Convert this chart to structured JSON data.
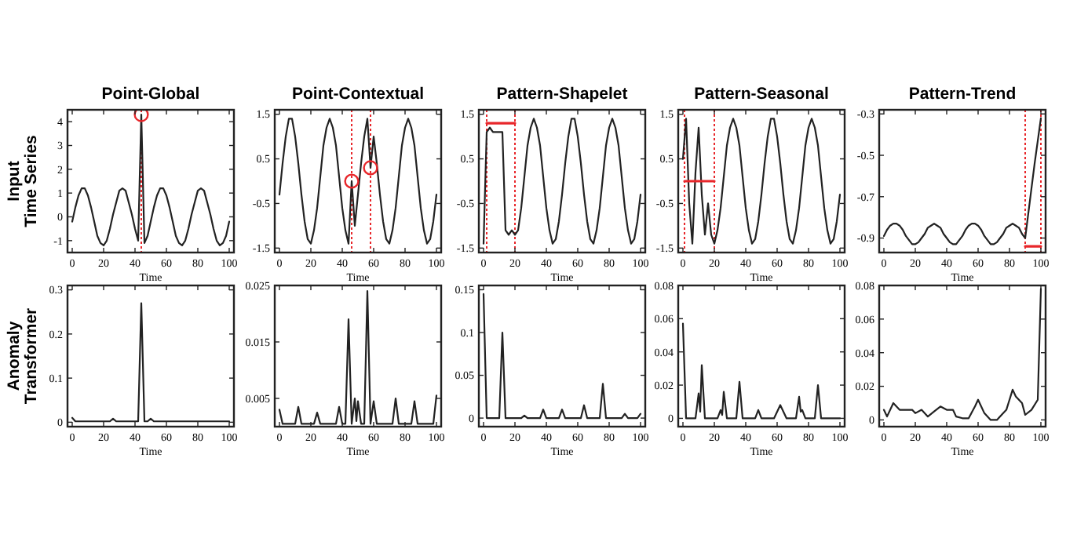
{
  "chart_data": [
    {
      "type": "line",
      "title": "Point-Global",
      "xlabel": "Time",
      "ylabel": "Input Time Series",
      "xlim": [
        -3,
        103
      ],
      "xticks": [
        0,
        20,
        40,
        60,
        80,
        100
      ],
      "ylim": [
        -1.5,
        4.5
      ],
      "yticks": [
        -1,
        0,
        1,
        2,
        3,
        4
      ],
      "x": [
        0,
        2,
        4,
        6,
        8,
        10,
        12,
        14,
        16,
        18,
        20,
        22,
        24,
        26,
        28,
        30,
        32,
        34,
        36,
        38,
        40,
        42,
        44,
        46,
        48,
        50,
        52,
        54,
        56,
        58,
        60,
        62,
        64,
        66,
        68,
        70,
        72,
        74,
        76,
        78,
        80,
        82,
        84,
        86,
        88,
        90,
        92,
        94,
        96,
        98,
        100
      ],
      "series": [
        {
          "type": "line",
          "color": "#222222",
          "values": [
            -0.2,
            0.4,
            0.9,
            1.2,
            1.2,
            0.9,
            0.4,
            -0.2,
            -0.8,
            -1.1,
            -1.2,
            -1.0,
            -0.5,
            0.1,
            0.6,
            1.1,
            1.2,
            1.1,
            0.6,
            0.1,
            -0.5,
            -1.0,
            4.3,
            -1.1,
            -0.8,
            -0.2,
            0.4,
            0.9,
            1.2,
            1.2,
            0.9,
            0.4,
            -0.2,
            -0.8,
            -1.1,
            -1.2,
            -1.0,
            -0.5,
            0.1,
            0.6,
            1.1,
            1.2,
            1.1,
            0.6,
            0.1,
            -0.5,
            -1.0,
            -1.2,
            -1.1,
            -0.8,
            -0.2
          ]
        },
        {
          "type": "scatter",
          "marker": "circle",
          "color": "#e8262a",
          "x": [
            44
          ],
          "values": [
            4.3
          ]
        }
      ],
      "ref_lines": [
        {
          "axis": "x",
          "value": 44,
          "color": "#e8262a",
          "line_style": "dotted"
        }
      ]
    },
    {
      "type": "line",
      "title": "Point-Contextual",
      "xlabel": "Time",
      "xlim": [
        -3,
        103
      ],
      "xticks": [
        0,
        20,
        40,
        60,
        80,
        100
      ],
      "ylim": [
        -1.6,
        1.6
      ],
      "yticks": [
        -1.5,
        -0.5,
        0.5,
        1.5
      ],
      "x": [
        0,
        2,
        4,
        6,
        8,
        10,
        12,
        14,
        16,
        18,
        20,
        22,
        24,
        26,
        28,
        30,
        32,
        34,
        36,
        38,
        40,
        42,
        44,
        46,
        48,
        50,
        52,
        54,
        56,
        58,
        60,
        62,
        64,
        66,
        68,
        70,
        72,
        74,
        76,
        78,
        80,
        82,
        84,
        86,
        88,
        90,
        92,
        94,
        96,
        98,
        100
      ],
      "series": [
        {
          "type": "line",
          "color": "#222222",
          "values": [
            -0.3,
            0.4,
            1.0,
            1.4,
            1.4,
            1.0,
            0.4,
            -0.3,
            -0.9,
            -1.3,
            -1.4,
            -1.1,
            -0.6,
            0.1,
            0.8,
            1.2,
            1.4,
            1.2,
            0.8,
            0.1,
            -0.6,
            -1.1,
            -1.4,
            0.0,
            -1.0,
            -0.3,
            0.4,
            1.0,
            1.4,
            0.3,
            1.0,
            0.4,
            -0.3,
            -0.9,
            -1.3,
            -1.4,
            -1.1,
            -0.6,
            0.1,
            0.8,
            1.2,
            1.4,
            1.2,
            0.8,
            0.1,
            -0.6,
            -1.1,
            -1.4,
            -1.3,
            -0.9,
            -0.3
          ]
        },
        {
          "type": "scatter",
          "marker": "circle",
          "color": "#e8262a",
          "x": [
            46,
            58
          ],
          "values": [
            0.0,
            0.3
          ]
        }
      ],
      "ref_lines": [
        {
          "axis": "x",
          "value": 46,
          "color": "#e8262a",
          "line_style": "dotted"
        },
        {
          "axis": "x",
          "value": 58,
          "color": "#e8262a",
          "line_style": "dotted"
        }
      ]
    },
    {
      "type": "line",
      "title": "Pattern-Shapelet",
      "xlabel": "Time",
      "xlim": [
        -3,
        103
      ],
      "xticks": [
        0,
        20,
        40,
        60,
        80,
        100
      ],
      "ylim": [
        -1.6,
        1.6
      ],
      "yticks": [
        -1.5,
        -0.5,
        0.5,
        1.5
      ],
      "x": [
        0,
        2,
        4,
        6,
        8,
        10,
        12,
        14,
        16,
        18,
        20,
        22,
        24,
        26,
        28,
        30,
        32,
        34,
        36,
        38,
        40,
        42,
        44,
        46,
        48,
        50,
        52,
        54,
        56,
        58,
        60,
        62,
        64,
        66,
        68,
        70,
        72,
        74,
        76,
        78,
        80,
        82,
        84,
        86,
        88,
        90,
        92,
        94,
        96,
        98,
        100
      ],
      "series": [
        {
          "type": "line",
          "color": "#222222",
          "values": [
            -1.4,
            1.1,
            1.2,
            1.1,
            1.1,
            1.1,
            1.1,
            -1.1,
            -1.2,
            -1.1,
            -1.2,
            -1.1,
            -0.6,
            0.1,
            0.8,
            1.2,
            1.4,
            1.2,
            0.8,
            0.1,
            -0.6,
            -1.1,
            -1.4,
            -1.3,
            -0.9,
            -0.3,
            0.4,
            1.0,
            1.4,
            1.4,
            1.0,
            0.4,
            -0.3,
            -0.9,
            -1.3,
            -1.4,
            -1.1,
            -0.6,
            0.1,
            0.8,
            1.2,
            1.4,
            1.2,
            0.8,
            0.1,
            -0.6,
            -1.1,
            -1.4,
            -1.3,
            -0.9,
            -0.3
          ]
        },
        {
          "type": "line",
          "color": "#e8262a",
          "x": [
            2,
            20
          ],
          "values": [
            1.3,
            1.3
          ]
        }
      ],
      "ref_lines": [
        {
          "axis": "x",
          "value": 2,
          "color": "#e8262a",
          "line_style": "dotted"
        },
        {
          "axis": "x",
          "value": 20,
          "color": "#e8262a",
          "line_style": "dotted"
        }
      ]
    },
    {
      "type": "line",
      "title": "Pattern-Seasonal",
      "xlabel": "Time",
      "xlim": [
        -3,
        103
      ],
      "xticks": [
        0,
        20,
        40,
        60,
        80,
        100
      ],
      "ylim": [
        -1.6,
        1.6
      ],
      "yticks": [
        -1.5,
        -0.5,
        0.5,
        1.5
      ],
      "x": [
        0,
        2,
        4,
        6,
        8,
        10,
        12,
        14,
        16,
        18,
        20,
        22,
        24,
        26,
        28,
        30,
        32,
        34,
        36,
        38,
        40,
        42,
        44,
        46,
        48,
        50,
        52,
        54,
        56,
        58,
        60,
        62,
        64,
        66,
        68,
        70,
        72,
        74,
        76,
        78,
        80,
        82,
        84,
        86,
        88,
        90,
        92,
        94,
        96,
        98,
        100
      ],
      "series": [
        {
          "type": "line",
          "color": "#222222",
          "values": [
            0.5,
            1.4,
            -0.5,
            -1.4,
            0.2,
            1.2,
            -0.3,
            -1.2,
            -0.5,
            -1.2,
            -1.4,
            -1.1,
            -0.6,
            0.1,
            0.8,
            1.2,
            1.4,
            1.2,
            0.8,
            0.1,
            -0.6,
            -1.1,
            -1.4,
            -1.3,
            -0.9,
            -0.3,
            0.4,
            1.0,
            1.4,
            1.4,
            1.0,
            0.4,
            -0.3,
            -0.9,
            -1.3,
            -1.4,
            -1.1,
            -0.6,
            0.1,
            0.8,
            1.2,
            1.4,
            1.2,
            0.8,
            0.1,
            -0.6,
            -1.1,
            -1.4,
            -1.3,
            -0.9,
            -0.3
          ]
        },
        {
          "type": "line",
          "color": "#e8262a",
          "x": [
            1,
            20
          ],
          "values": [
            0,
            0
          ]
        }
      ],
      "ref_lines": [
        {
          "axis": "x",
          "value": 1,
          "color": "#e8262a",
          "line_style": "dotted"
        },
        {
          "axis": "x",
          "value": 20,
          "color": "#e8262a",
          "line_style": "dotted"
        }
      ]
    },
    {
      "type": "line",
      "title": "Pattern-Trend",
      "xlabel": "Time",
      "xlim": [
        -3,
        103
      ],
      "xticks": [
        0,
        20,
        40,
        60,
        80,
        100
      ],
      "ylim": [
        -0.97,
        -0.28
      ],
      "yticks": [
        -0.9,
        -0.7,
        -0.5,
        -0.3
      ],
      "x": [
        0,
        2,
        4,
        6,
        8,
        10,
        12,
        14,
        16,
        18,
        20,
        22,
        24,
        26,
        28,
        30,
        32,
        34,
        36,
        38,
        40,
        42,
        44,
        46,
        48,
        50,
        52,
        54,
        56,
        58,
        60,
        62,
        64,
        66,
        68,
        70,
        72,
        74,
        76,
        78,
        80,
        82,
        84,
        86,
        88,
        90,
        92,
        94,
        96,
        98,
        100
      ],
      "series": [
        {
          "type": "line",
          "color": "#222222",
          "values": [
            -0.89,
            -0.86,
            -0.84,
            -0.83,
            -0.83,
            -0.84,
            -0.86,
            -0.89,
            -0.91,
            -0.93,
            -0.93,
            -0.92,
            -0.9,
            -0.88,
            -0.85,
            -0.84,
            -0.83,
            -0.84,
            -0.85,
            -0.88,
            -0.9,
            -0.92,
            -0.93,
            -0.93,
            -0.91,
            -0.89,
            -0.86,
            -0.84,
            -0.83,
            -0.83,
            -0.84,
            -0.86,
            -0.89,
            -0.91,
            -0.93,
            -0.93,
            -0.92,
            -0.9,
            -0.88,
            -0.85,
            -0.84,
            -0.83,
            -0.84,
            -0.85,
            -0.88,
            -0.9,
            -0.78,
            -0.66,
            -0.54,
            -0.43,
            -0.32
          ]
        },
        {
          "type": "line",
          "color": "#e8262a",
          "x": [
            90,
            100
          ],
          "values": [
            -0.94,
            -0.94
          ]
        }
      ],
      "ref_lines": [
        {
          "axis": "x",
          "value": 90,
          "color": "#e8262a",
          "line_style": "dotted"
        },
        {
          "axis": "x",
          "value": 100,
          "color": "#e8262a",
          "line_style": "dotted"
        }
      ]
    },
    {
      "type": "line",
      "xlabel": "Time",
      "ylabel": "Anomaly Transformer",
      "xlim": [
        -3,
        103
      ],
      "xticks": [
        0,
        20,
        40,
        60,
        80,
        100
      ],
      "ylim": [
        -0.01,
        0.31
      ],
      "yticks": [
        0,
        0.1,
        0.2,
        0.3
      ],
      "series": [
        {
          "type": "line",
          "color": "#222222",
          "x": [
            0,
            2,
            24,
            26,
            28,
            42,
            44,
            46,
            48,
            50,
            52,
            100
          ],
          "values": [
            0.01,
            0.002,
            0.002,
            0.008,
            0.002,
            0.002,
            0.27,
            0.002,
            0.002,
            0.008,
            0.002,
            0.002
          ]
        }
      ]
    },
    {
      "type": "line",
      "xlabel": "Time",
      "xlim": [
        -3,
        103
      ],
      "xticks": [
        0,
        20,
        40,
        60,
        80,
        100
      ],
      "ylim": [
        0,
        0.025
      ],
      "yticks": [
        0.005,
        0.015,
        0.025
      ],
      "series": [
        {
          "type": "line",
          "color": "#222222",
          "x": [
            0,
            2,
            10,
            12,
            14,
            22,
            24,
            26,
            36,
            38,
            40,
            42,
            44,
            46,
            48,
            49,
            50,
            52,
            54,
            56,
            58,
            60,
            62,
            72,
            74,
            76,
            84,
            86,
            88,
            98,
            100
          ],
          "values": [
            0.003,
            0.0005,
            0.0005,
            0.0035,
            0.0005,
            0.0005,
            0.0025,
            0.0005,
            0.0005,
            0.0035,
            0.0005,
            0.0005,
            0.019,
            0.0005,
            0.005,
            0.001,
            0.0045,
            0.0005,
            0.0005,
            0.024,
            0.0005,
            0.0045,
            0.0005,
            0.0005,
            0.005,
            0.0005,
            0.0005,
            0.0045,
            0.0005,
            0.0005,
            0.0055
          ]
        }
      ]
    },
    {
      "type": "line",
      "xlabel": "Time",
      "xlim": [
        -3,
        103
      ],
      "xticks": [
        0,
        20,
        40,
        60,
        80,
        100
      ],
      "ylim": [
        -0.01,
        0.155
      ],
      "yticks": [
        0,
        0.05,
        0.1,
        0.15
      ],
      "series": [
        {
          "type": "line",
          "color": "#222222",
          "x": [
            0,
            2,
            10,
            12,
            14,
            24,
            26,
            28,
            36,
            38,
            40,
            48,
            50,
            52,
            62,
            64,
            66,
            74,
            76,
            78,
            88,
            90,
            92,
            98,
            100
          ],
          "values": [
            0.145,
            0,
            0,
            0.1,
            0,
            0,
            0.003,
            0,
            0,
            0.01,
            0,
            0,
            0.01,
            0,
            0,
            0.015,
            0,
            0,
            0.04,
            0,
            0,
            0.005,
            0,
            0,
            0.005
          ]
        }
      ]
    },
    {
      "type": "line",
      "xlabel": "Time",
      "xlim": [
        -3,
        103
      ],
      "xticks": [
        0,
        20,
        40,
        60,
        80,
        100
      ],
      "ylim": [
        -0.005,
        0.08
      ],
      "yticks": [
        0,
        0.02,
        0.04,
        0.06,
        0.08
      ],
      "series": [
        {
          "type": "line",
          "color": "#222222",
          "x": [
            0,
            2,
            8,
            10,
            11,
            12,
            14,
            22,
            24,
            25,
            26,
            28,
            34,
            36,
            38,
            46,
            48,
            50,
            58,
            62,
            66,
            72,
            74,
            75,
            76,
            78,
            84,
            86,
            88,
            100
          ],
          "values": [
            0.057,
            0,
            0,
            0.015,
            0.004,
            0.032,
            0,
            0,
            0.005,
            0.002,
            0.016,
            0,
            0,
            0.022,
            0,
            0,
            0.005,
            0,
            0,
            0.008,
            0,
            0,
            0.013,
            0.004,
            0.005,
            0,
            0,
            0.02,
            0,
            0
          ]
        }
      ]
    },
    {
      "type": "line",
      "xlabel": "Time",
      "xlim": [
        -3,
        103
      ],
      "xticks": [
        0,
        20,
        40,
        60,
        80,
        100
      ],
      "ylim": [
        -0.004,
        0.08
      ],
      "yticks": [
        0,
        0.02,
        0.04,
        0.06,
        0.08
      ],
      "series": [
        {
          "type": "line",
          "color": "#222222",
          "x": [
            0,
            2,
            6,
            10,
            14,
            18,
            20,
            24,
            28,
            32,
            36,
            40,
            44,
            46,
            50,
            54,
            58,
            60,
            64,
            68,
            72,
            76,
            78,
            80,
            82,
            84,
            86,
            88,
            90,
            94,
            98,
            100
          ],
          "values": [
            0.006,
            0.002,
            0.01,
            0.006,
            0.006,
            0.006,
            0.004,
            0.006,
            0.002,
            0.005,
            0.008,
            0.006,
            0.006,
            0.002,
            0.001,
            0.001,
            0.008,
            0.012,
            0.004,
            0,
            0,
            0.004,
            0.006,
            0.012,
            0.018,
            0.014,
            0.012,
            0.01,
            0.003,
            0.006,
            0.012,
            0.078
          ]
        }
      ]
    }
  ]
}
